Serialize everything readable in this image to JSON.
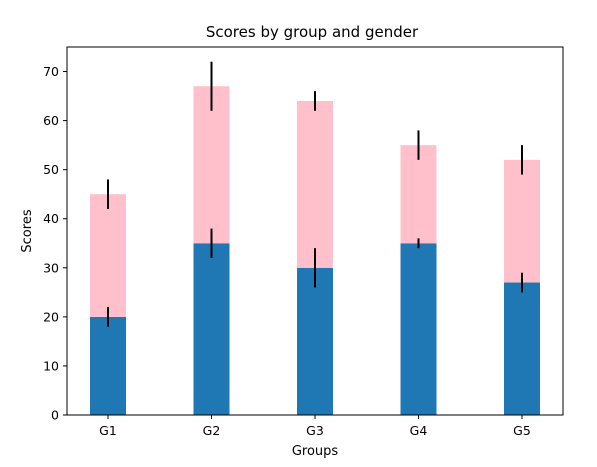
{
  "chart_data": {
    "type": "bar",
    "stacked": true,
    "title": "Scores by group and gender",
    "xlabel": "Groups",
    "ylabel": "Scores",
    "categories": [
      "G1",
      "G2",
      "G3",
      "G4",
      "G5"
    ],
    "ylim": [
      0,
      75
    ],
    "yticks": [
      0,
      10,
      20,
      30,
      40,
      50,
      60,
      70
    ],
    "grid": false,
    "series": [
      {
        "values": [
          20,
          35,
          30,
          35,
          27
        ],
        "errors": [
          2,
          3,
          4,
          1,
          2
        ],
        "color": "#1f77b4"
      },
      {
        "values": [
          25,
          32,
          34,
          20,
          25
        ],
        "errors": [
          3,
          5,
          2,
          3,
          3
        ],
        "color": "#ffc0cb"
      }
    ]
  }
}
